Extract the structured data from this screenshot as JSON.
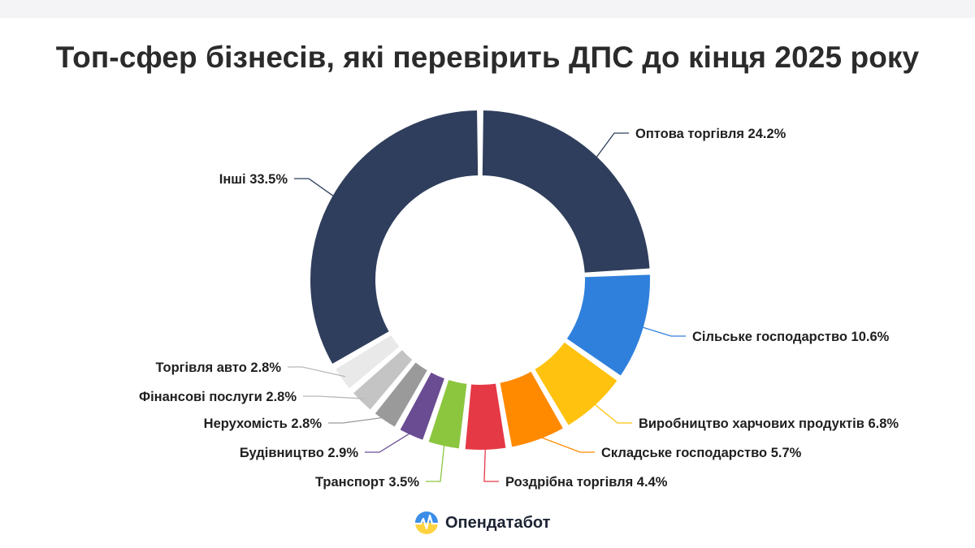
{
  "title": "Топ-сфер бізнесів, які перевірить ДПС до кінця 2025 року",
  "brand": {
    "name": "Опендатабот",
    "icon": "opendatabot-logo-icon"
  },
  "chart_data": {
    "type": "pie",
    "donut": true,
    "unit": "%",
    "series": [
      {
        "label": "Оптова торгівля",
        "value": 24.2,
        "color": "#2f3e5c"
      },
      {
        "label": "Сільське господарство",
        "value": 10.6,
        "color": "#2f80dc"
      },
      {
        "label": "Виробництво харчових продуктів",
        "value": 6.8,
        "color": "#ffc20e"
      },
      {
        "label": "Складське господарство",
        "value": 5.7,
        "color": "#ff8a00"
      },
      {
        "label": "Роздрібна торгівля",
        "value": 4.4,
        "color": "#e63946"
      },
      {
        "label": "Транспорт",
        "value": 3.5,
        "color": "#8cc63f"
      },
      {
        "label": "Будівництво",
        "value": 2.9,
        "color": "#6a4c93"
      },
      {
        "label": "Нерухомість",
        "value": 2.8,
        "color": "#9a9a9a"
      },
      {
        "label": "Фінансові послуги",
        "value": 2.8,
        "color": "#c4c4c4"
      },
      {
        "label": "Торгівля авто",
        "value": 2.8,
        "color": "#e9e9e9"
      },
      {
        "label": "Інші",
        "value": 33.5,
        "color": "#2f3e5c"
      }
    ]
  }
}
